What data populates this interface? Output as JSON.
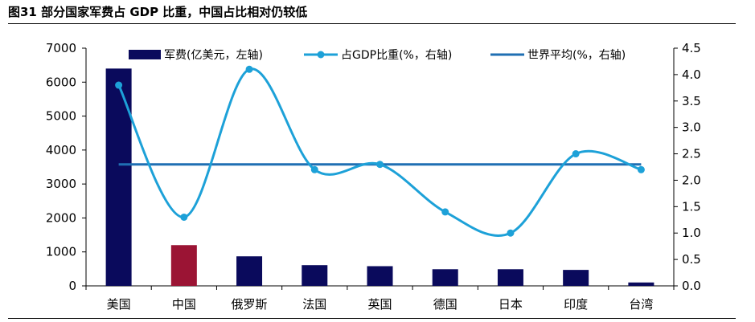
{
  "title": "图31 部分国家军费占 GDP 比重，中国占比相对仍较低",
  "chart_data": {
    "type": "bar",
    "categories": [
      "美国",
      "中国",
      "俄罗斯",
      "法国",
      "英国",
      "德国",
      "日本",
      "印度",
      "台湾"
    ],
    "series": [
      {
        "name": "军费(亿美元，左轴)",
        "type": "bar",
        "axis": "left",
        "values": [
          6400,
          1200,
          870,
          610,
          580,
          490,
          490,
          470,
          100
        ],
        "colors": [
          "#0a0a5c",
          "#9b1434",
          "#0a0a5c",
          "#0a0a5c",
          "#0a0a5c",
          "#0a0a5c",
          "#0a0a5c",
          "#0a0a5c",
          "#0a0a5c"
        ]
      },
      {
        "name": "占GDP比重(%，右轴)",
        "type": "line",
        "smooth": true,
        "markers": true,
        "axis": "right",
        "color": "#1da1d8",
        "values": [
          3.8,
          1.3,
          4.1,
          2.2,
          2.3,
          1.4,
          1.0,
          2.5,
          2.2
        ]
      },
      {
        "name": "世界平均(%，右轴)",
        "type": "line",
        "axis": "right",
        "color": "#1f6fb3",
        "values": [
          2.3,
          2.3,
          2.3,
          2.3,
          2.3,
          2.3,
          2.3,
          2.3,
          2.3
        ]
      }
    ],
    "y_left": {
      "min": 0,
      "max": 7000,
      "ticks": [
        0,
        1000,
        2000,
        3000,
        4000,
        5000,
        6000,
        7000
      ]
    },
    "y_right": {
      "min": 0,
      "max": 4.5,
      "ticks": [
        "0.0",
        "0.5",
        "1.0",
        "1.5",
        "2.0",
        "2.5",
        "3.0",
        "3.5",
        "4.0",
        "4.5"
      ]
    },
    "legend_position": "top",
    "grid": false
  }
}
